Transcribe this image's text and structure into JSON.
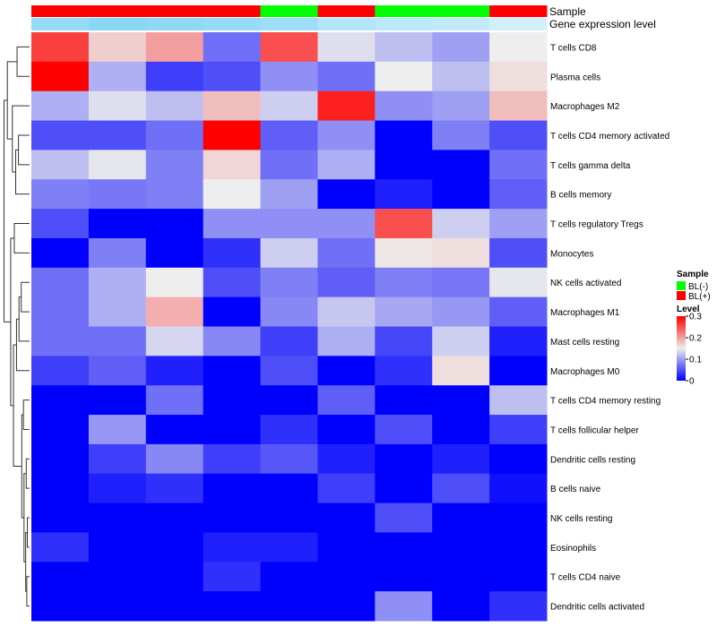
{
  "chart_data": {
    "type": "heatmap",
    "annotations": {
      "sample_title": "Sample",
      "expression_title": "Gene expression level",
      "sample": [
        "BL(+)",
        "BL(+)",
        "BL(+)",
        "BL(+)",
        "BL(-)",
        "BL(+)",
        "BL(-)",
        "BL(-)",
        "BL(+)"
      ],
      "expression_level": [
        0.5,
        0.6,
        0.55,
        0.5,
        0.45,
        0.3,
        0.25,
        0.2,
        0.1
      ]
    },
    "rows": [
      "T cells CD8",
      "Plasma cells",
      "Macrophages M2",
      "T cells CD4 memory activated",
      "T cells gamma delta",
      "B cells memory",
      "T cells regulatory  Tregs",
      "Monocytes",
      "NK cells activated",
      "Macrophages M1",
      "Mast cells resting",
      "Macrophages M0",
      "T cells CD4 memory resting",
      "T cells follicular helper",
      "Dendritic cells resting",
      "B cells naive",
      "NK cells resting",
      "Eosinophils",
      "T cells CD4 naive",
      "Dendritic cells activated"
    ],
    "values": [
      [
        0.26,
        0.17,
        0.2,
        0.07,
        0.25,
        0.14,
        0.12,
        0.1,
        0.15
      ],
      [
        0.3,
        0.11,
        0.04,
        0.05,
        0.09,
        0.07,
        0.15,
        0.12,
        0.16
      ],
      [
        0.11,
        0.14,
        0.12,
        0.18,
        0.13,
        0.28,
        0.09,
        0.1,
        0.18
      ],
      [
        0.05,
        0.05,
        0.07,
        0.3,
        0.06,
        0.09,
        0.0,
        0.08,
        0.05
      ],
      [
        0.12,
        0.145,
        0.08,
        0.165,
        0.07,
        0.11,
        0.0,
        0.0,
        0.07
      ],
      [
        0.08,
        0.075,
        0.08,
        0.15,
        0.1,
        0.0,
        0.02,
        0.0,
        0.06
      ],
      [
        0.05,
        0.0,
        0.0,
        0.09,
        0.09,
        0.09,
        0.25,
        0.13,
        0.1
      ],
      [
        0.0,
        0.08,
        0.0,
        0.03,
        0.13,
        0.07,
        0.155,
        0.16,
        0.05
      ],
      [
        0.07,
        0.11,
        0.15,
        0.05,
        0.08,
        0.06,
        0.08,
        0.075,
        0.145
      ],
      [
        0.07,
        0.11,
        0.19,
        0.0,
        0.085,
        0.125,
        0.105,
        0.095,
        0.06
      ],
      [
        0.07,
        0.07,
        0.135,
        0.085,
        0.04,
        0.11,
        0.045,
        0.13,
        0.02
      ],
      [
        0.04,
        0.06,
        0.02,
        0.0,
        0.05,
        0.0,
        0.03,
        0.16,
        0.0
      ],
      [
        0.0,
        0.0,
        0.07,
        0.0,
        0.0,
        0.06,
        0.0,
        0.0,
        0.12
      ],
      [
        0.0,
        0.095,
        0.0,
        0.0,
        0.03,
        0.0,
        0.05,
        0.0,
        0.04
      ],
      [
        0.0,
        0.04,
        0.085,
        0.04,
        0.055,
        0.02,
        0.0,
        0.02,
        0.0
      ],
      [
        0.0,
        0.02,
        0.03,
        0.0,
        0.0,
        0.04,
        0.0,
        0.05,
        0.01
      ],
      [
        0.0,
        0.0,
        0.0,
        0.0,
        0.0,
        0.0,
        0.05,
        0.0,
        0.0
      ],
      [
        0.03,
        0.0,
        0.0,
        0.02,
        0.02,
        0.0,
        0.0,
        0.0,
        0.0
      ],
      [
        0.0,
        0.0,
        0.0,
        0.03,
        0.0,
        0.0,
        0.0,
        0.0,
        0.0
      ],
      [
        0.0,
        0.0,
        0.0,
        0.0,
        0.0,
        0.0,
        0.09,
        0.0,
        0.03
      ]
    ],
    "color_scale": {
      "low": "#0000ff",
      "mid": "#eeeeee",
      "high": "#ff0000",
      "range": [
        0,
        0.3
      ]
    },
    "legend": {
      "sample_title": "Sample",
      "sample_entries": [
        {
          "label": "BL(-)",
          "color": "#00ff00"
        },
        {
          "label": "BL(+)",
          "color": "#ff0000"
        }
      ],
      "level_title": "Level",
      "level_ticks": [
        "0.3",
        "0.2",
        "0.1",
        "0"
      ],
      "placement": "right"
    },
    "row_dendrogram": true,
    "grid": false
  }
}
